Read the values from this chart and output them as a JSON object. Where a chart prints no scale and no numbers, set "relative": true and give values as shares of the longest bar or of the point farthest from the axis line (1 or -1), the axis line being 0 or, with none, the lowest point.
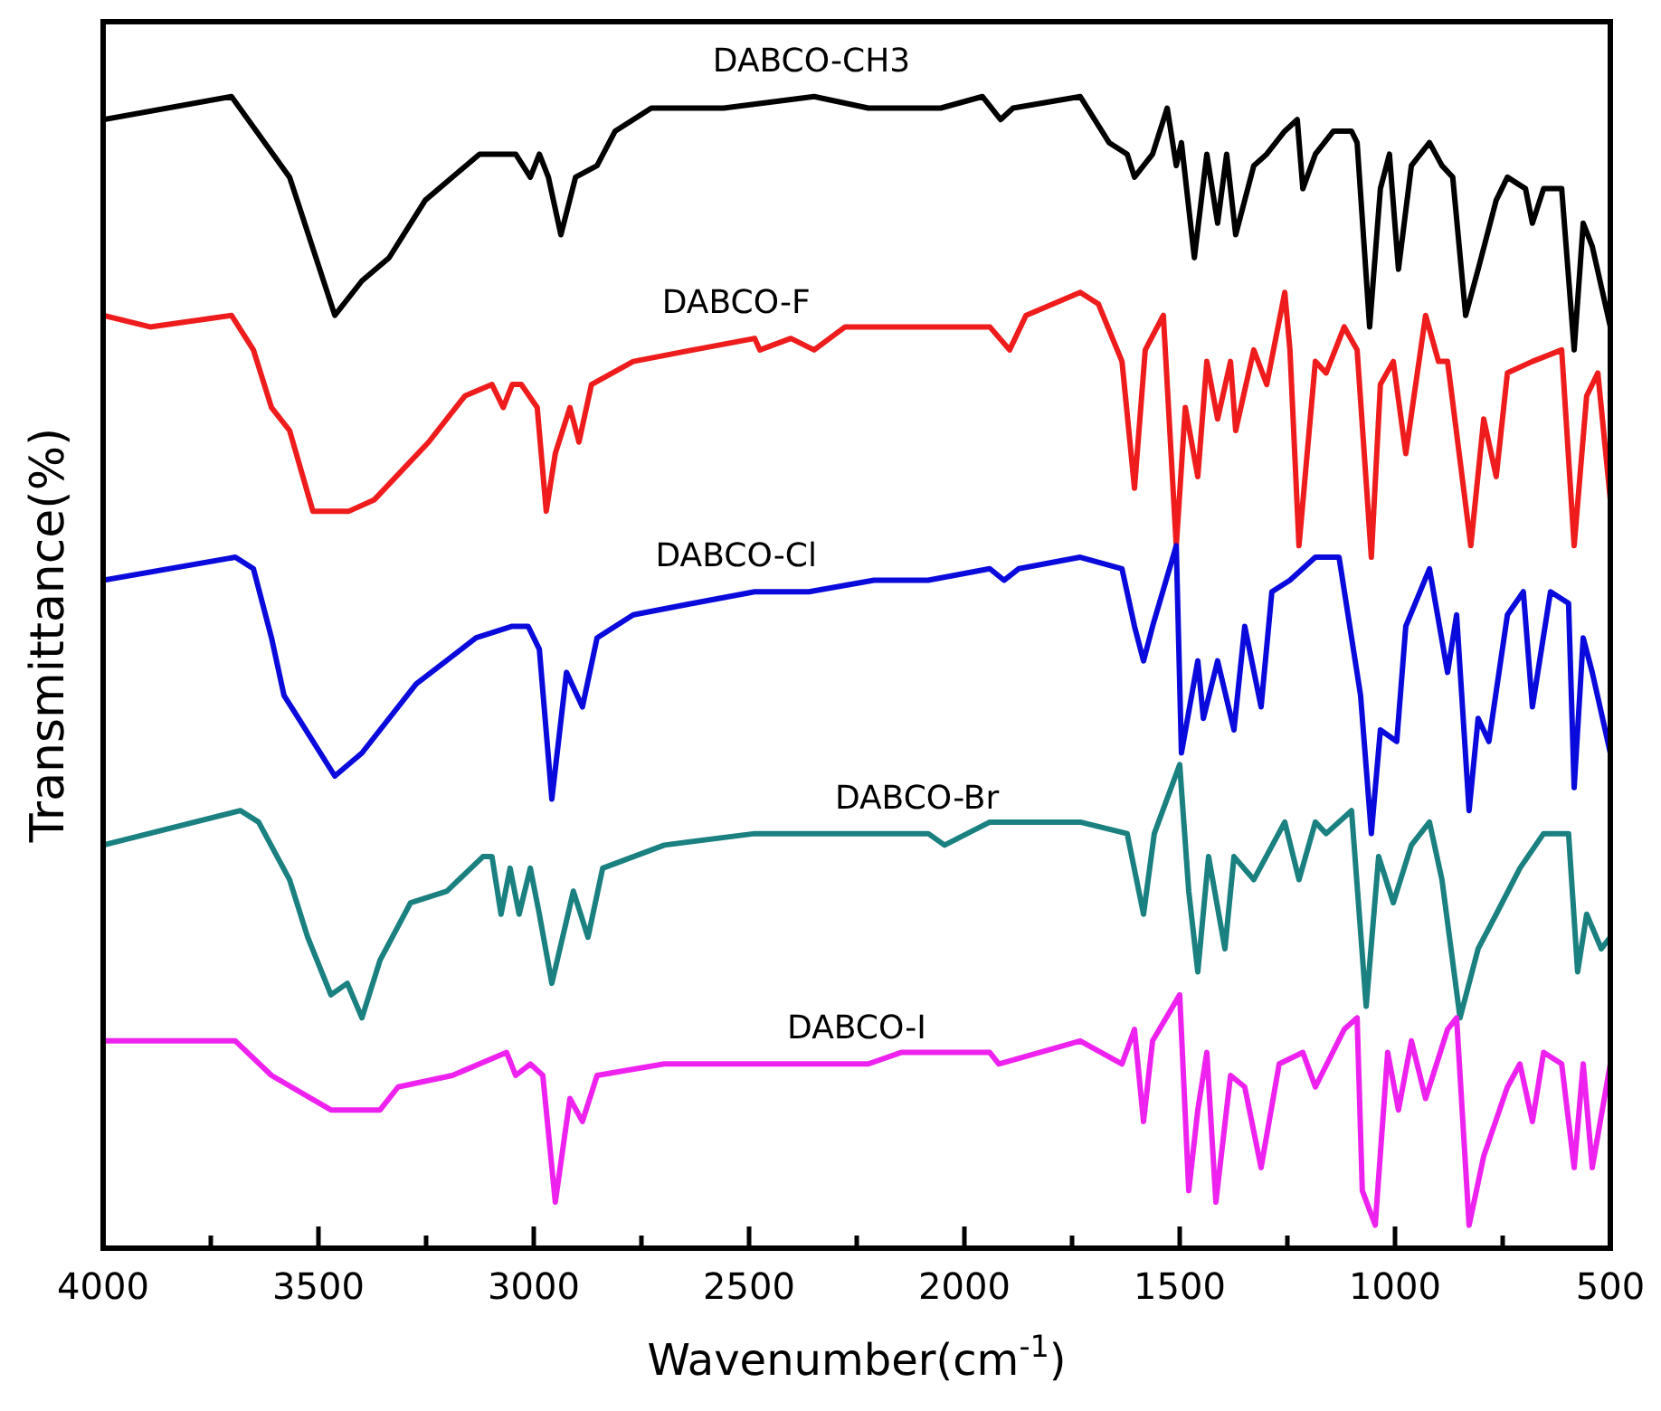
{
  "chart_data": {
    "type": "line",
    "relative": true,
    "xlabel": "Wavenumber(cm$^{-1}$)",
    "ylabel": "Transmittance(%)",
    "xlim": [
      4000,
      500
    ],
    "xticks": [
      4000,
      {
        "value": 3750,
        "label": null
      },
      3500,
      {
        "value": 3250,
        "label": null
      },
      3000,
      {
        "value": 2750,
        "label": null
      },
      2500,
      {
        "value": 2250,
        "label": null
      },
      2000,
      {
        "value": 1750,
        "label": null
      },
      1500,
      {
        "value": 1250,
        "label": null
      },
      1000,
      {
        "value": 750,
        "label": null
      },
      500
    ],
    "tick_labels": "x",
    "grid": false,
    "legend": false,
    "marker": "none",
    "line_style": "solid",
    "series": [
      {
        "name": "DABCO-CH3",
        "color": "#000000",
        "x": [
          4000,
          3702,
          3567,
          3462,
          3399,
          3336,
          3252,
          3126,
          3042,
          3008,
          2987,
          2966,
          2937,
          2903,
          2853,
          2811,
          2727,
          2559,
          2349,
          2223,
          2055,
          1958,
          1916,
          1887,
          1731,
          1664,
          1622,
          1605,
          1563,
          1529,
          1508,
          1496,
          1466,
          1437,
          1412,
          1391,
          1370,
          1328,
          1298,
          1256,
          1227,
          1214,
          1185,
          1143,
          1101,
          1088,
          1059,
          1034,
          1013,
          992,
          962,
          920,
          891,
          866,
          836,
          807,
          765,
          739,
          697,
          681,
          655,
          613,
          584,
          563,
          542,
          500
        ],
        "values": [
          0.98,
          1.0,
          0.93,
          0.81,
          0.84,
          0.86,
          0.91,
          0.95,
          0.95,
          0.93,
          0.95,
          0.93,
          0.88,
          0.93,
          0.94,
          0.97,
          0.99,
          0.99,
          1.0,
          0.99,
          0.99,
          1.0,
          0.98,
          0.99,
          1.0,
          0.96,
          0.95,
          0.93,
          0.95,
          0.99,
          0.94,
          0.96,
          0.86,
          0.95,
          0.89,
          0.95,
          0.88,
          0.94,
          0.95,
          0.97,
          0.98,
          0.92,
          0.95,
          0.97,
          0.97,
          0.96,
          0.8,
          0.92,
          0.95,
          0.85,
          0.94,
          0.96,
          0.94,
          0.93,
          0.81,
          0.85,
          0.91,
          0.93,
          0.92,
          0.89,
          0.92,
          0.92,
          0.78,
          0.89,
          0.87,
          0.8
        ]
      },
      {
        "name": "DABCO-F",
        "color": "#ee1c1c",
        "x": [
          4000,
          3891,
          3702,
          3651,
          3609,
          3567,
          3513,
          3429,
          3370,
          3244,
          3160,
          3097,
          3071,
          3050,
          3029,
          2992,
          2971,
          2950,
          2916,
          2895,
          2866,
          2769,
          2630,
          2487,
          2475,
          2403,
          2349,
          2277,
          2223,
          2151,
          1941,
          1895,
          1857,
          1731,
          1689,
          1634,
          1605,
          1580,
          1538,
          1508,
          1487,
          1458,
          1437,
          1412,
          1382,
          1370,
          1328,
          1298,
          1256,
          1244,
          1223,
          1185,
          1160,
          1118,
          1088,
          1055,
          1034,
          1004,
          975,
          929,
          899,
          878,
          824,
          794,
          765,
          739,
          681,
          613,
          584,
          555,
          529,
          500
        ],
        "values": [
          0.81,
          0.8,
          0.81,
          0.78,
          0.73,
          0.71,
          0.64,
          0.64,
          0.65,
          0.7,
          0.74,
          0.75,
          0.73,
          0.75,
          0.75,
          0.73,
          0.64,
          0.69,
          0.73,
          0.7,
          0.75,
          0.77,
          0.78,
          0.79,
          0.78,
          0.79,
          0.78,
          0.8,
          0.8,
          0.8,
          0.8,
          0.78,
          0.81,
          0.83,
          0.82,
          0.77,
          0.66,
          0.78,
          0.81,
          0.61,
          0.73,
          0.67,
          0.77,
          0.72,
          0.77,
          0.71,
          0.78,
          0.75,
          0.83,
          0.78,
          0.61,
          0.77,
          0.76,
          0.8,
          0.78,
          0.6,
          0.75,
          0.77,
          0.69,
          0.81,
          0.77,
          0.77,
          0.61,
          0.72,
          0.67,
          0.76,
          0.77,
          0.78,
          0.61,
          0.74,
          0.76,
          0.65
        ]
      },
      {
        "name": "DABCO-Cl",
        "color": "#0a0adc",
        "x": [
          4000,
          3693,
          3651,
          3609,
          3580,
          3546,
          3462,
          3399,
          3273,
          3134,
          3050,
          3013,
          2987,
          2958,
          2924,
          2887,
          2853,
          2769,
          2630,
          2487,
          2361,
          2210,
          2084,
          1941,
          1908,
          1874,
          1731,
          1634,
          1605,
          1584,
          1563,
          1508,
          1496,
          1458,
          1445,
          1412,
          1374,
          1349,
          1311,
          1286,
          1244,
          1185,
          1130,
          1080,
          1055,
          1034,
          996,
          975,
          920,
          878,
          857,
          828,
          807,
          782,
          739,
          702,
          681,
          639,
          597,
          584,
          563,
          542,
          500
        ],
        "values": [
          0.58,
          0.6,
          0.59,
          0.53,
          0.48,
          0.46,
          0.41,
          0.43,
          0.49,
          0.53,
          0.54,
          0.54,
          0.52,
          0.39,
          0.5,
          0.47,
          0.53,
          0.55,
          0.56,
          0.57,
          0.57,
          0.58,
          0.58,
          0.59,
          0.58,
          0.59,
          0.6,
          0.59,
          0.54,
          0.51,
          0.54,
          0.61,
          0.43,
          0.51,
          0.46,
          0.51,
          0.45,
          0.54,
          0.47,
          0.57,
          0.58,
          0.6,
          0.6,
          0.48,
          0.36,
          0.45,
          0.44,
          0.54,
          0.59,
          0.5,
          0.55,
          0.38,
          0.46,
          0.44,
          0.55,
          0.57,
          0.47,
          0.57,
          0.56,
          0.4,
          0.53,
          0.5,
          0.43
        ]
      },
      {
        "name": "DABCO-Br",
        "color": "#1a8080",
        "x": [
          4000,
          3681,
          3639,
          3567,
          3525,
          3471,
          3433,
          3399,
          3357,
          3286,
          3202,
          3118,
          3097,
          3076,
          3055,
          3034,
          3008,
          2987,
          2958,
          2908,
          2874,
          2840,
          2697,
          2487,
          2277,
          2147,
          2084,
          2046,
          1941,
          1731,
          1622,
          1584,
          1559,
          1500,
          1479,
          1458,
          1433,
          1395,
          1374,
          1328,
          1256,
          1223,
          1185,
          1160,
          1101,
          1067,
          1038,
          1004,
          962,
          920,
          891,
          849,
          807,
          765,
          710,
          655,
          597,
          576,
          555,
          521,
          500
        ],
        "values": [
          0.35,
          0.38,
          0.37,
          0.32,
          0.27,
          0.22,
          0.23,
          0.2,
          0.25,
          0.3,
          0.31,
          0.34,
          0.34,
          0.29,
          0.33,
          0.29,
          0.33,
          0.29,
          0.23,
          0.31,
          0.27,
          0.33,
          0.35,
          0.36,
          0.36,
          0.36,
          0.36,
          0.35,
          0.37,
          0.37,
          0.36,
          0.29,
          0.36,
          0.42,
          0.31,
          0.24,
          0.34,
          0.26,
          0.34,
          0.32,
          0.37,
          0.32,
          0.37,
          0.36,
          0.38,
          0.21,
          0.34,
          0.3,
          0.35,
          0.37,
          0.32,
          0.2,
          0.26,
          0.29,
          0.33,
          0.36,
          0.36,
          0.24,
          0.29,
          0.26,
          0.27
        ]
      },
      {
        "name": "DABCO-I",
        "color": "#ee22ee",
        "x": [
          4000,
          3693,
          3609,
          3471,
          3357,
          3315,
          3189,
          3063,
          3042,
          3008,
          2979,
          2950,
          2916,
          2887,
          2853,
          2697,
          2487,
          2349,
          2223,
          2147,
          1941,
          1920,
          1731,
          1634,
          1605,
          1584,
          1563,
          1500,
          1479,
          1458,
          1437,
          1416,
          1382,
          1349,
          1311,
          1269,
          1214,
          1185,
          1118,
          1088,
          1076,
          1046,
          1017,
          992,
          962,
          929,
          878,
          857,
          828,
          794,
          739,
          710,
          681,
          655,
          613,
          584,
          563,
          542,
          500
        ],
        "values": [
          0.18,
          0.18,
          0.15,
          0.12,
          0.12,
          0.14,
          0.15,
          0.17,
          0.15,
          0.16,
          0.15,
          0.04,
          0.13,
          0.11,
          0.15,
          0.16,
          0.16,
          0.16,
          0.16,
          0.17,
          0.17,
          0.16,
          0.18,
          0.16,
          0.19,
          0.11,
          0.18,
          0.22,
          0.05,
          0.12,
          0.17,
          0.04,
          0.15,
          0.14,
          0.07,
          0.16,
          0.17,
          0.14,
          0.19,
          0.2,
          0.05,
          0.02,
          0.17,
          0.12,
          0.18,
          0.13,
          0.19,
          0.2,
          0.02,
          0.08,
          0.14,
          0.16,
          0.11,
          0.17,
          0.16,
          0.07,
          0.16,
          0.07,
          0.16
        ]
      }
    ]
  }
}
